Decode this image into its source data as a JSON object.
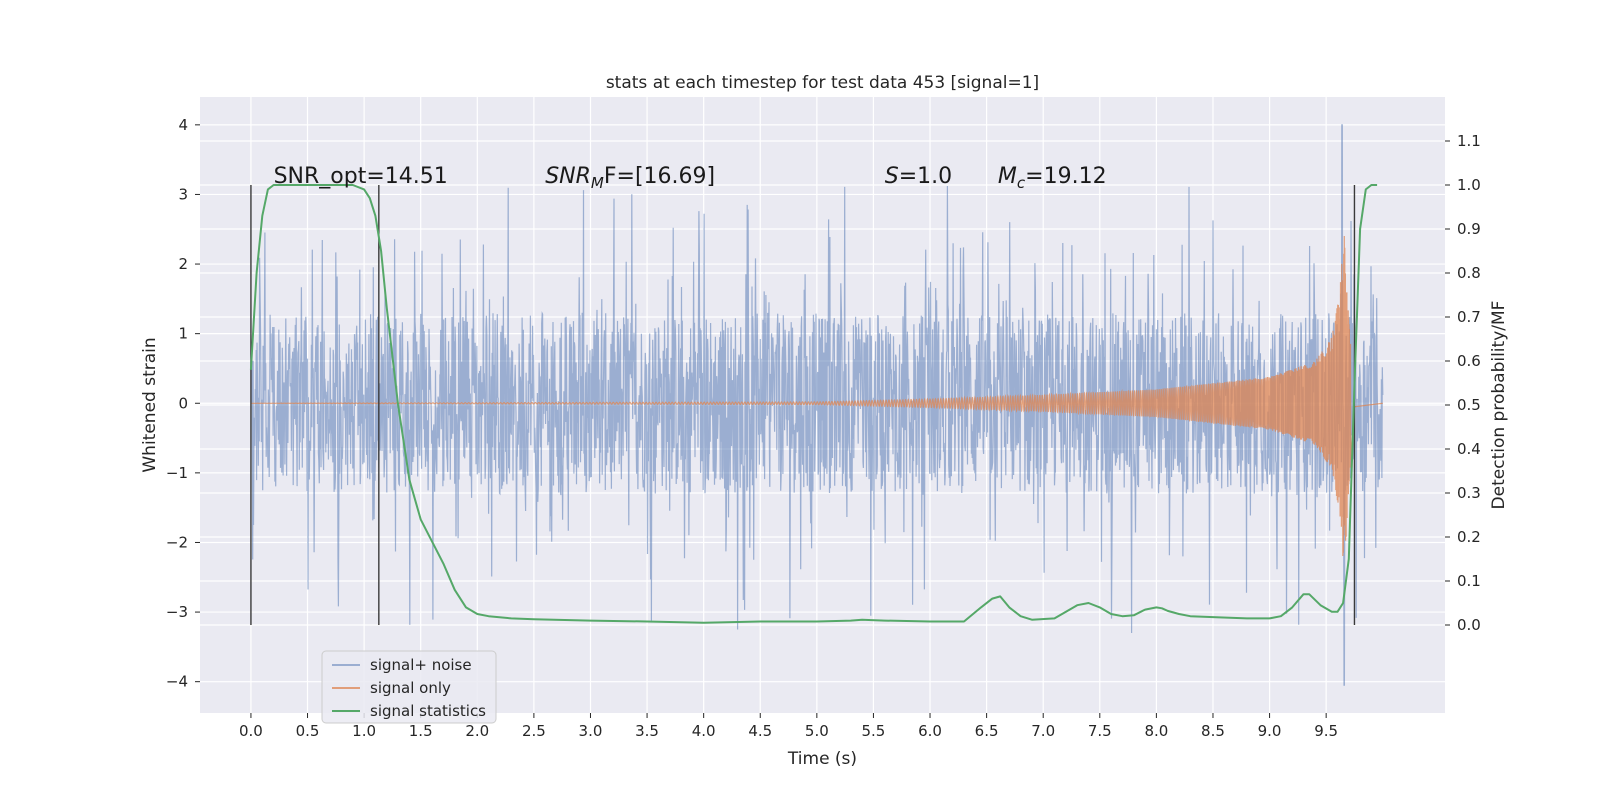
{
  "chart_data": {
    "type": "line",
    "title": "stats at each timestep for test data 453 [signal=1]",
    "xlabel": "Time (s)",
    "ylabel": "Whitened strain",
    "y2label": "Detection probability/MF",
    "xlim": [
      -0.45,
      10.55
    ],
    "ylim": [
      -4.45,
      4.4
    ],
    "y2lim": [
      -0.2,
      1.2
    ],
    "xticks": [
      0.0,
      0.5,
      1.0,
      1.5,
      2.0,
      2.5,
      3.0,
      3.5,
      4.0,
      4.5,
      5.0,
      5.5,
      6.0,
      6.5,
      7.0,
      7.5,
      8.0,
      8.5,
      9.0,
      9.5
    ],
    "xtick_labels": [
      "0.0",
      "0.5",
      "1.0",
      "1.5",
      "2.0",
      "2.5",
      "3.0",
      "3.5",
      "4.0",
      "4.5",
      "5.0",
      "5.5",
      "6.0",
      "6.5",
      "7.0",
      "7.5",
      "8.0",
      "8.5",
      "9.0",
      "9.5"
    ],
    "yticks": [
      -4,
      -3,
      -2,
      -1,
      0,
      1,
      2,
      3,
      4
    ],
    "ytick_labels": [
      "−4",
      "−3",
      "−2",
      "−1",
      "0",
      "1",
      "2",
      "3",
      "4"
    ],
    "y2ticks": [
      0.0,
      0.1,
      0.2,
      0.3,
      0.4,
      0.5,
      0.6,
      0.7,
      0.8,
      0.9,
      1.0,
      1.1
    ],
    "y2tick_labels": [
      "0.0",
      "0.1",
      "0.2",
      "0.3",
      "0.4",
      "0.5",
      "0.6",
      "0.7",
      "0.8",
      "0.9",
      "1.0",
      "1.1"
    ],
    "grid": true,
    "legend_position": "lower-left",
    "series": [
      {
        "name": "signal+ noise",
        "color": "#4c72b0",
        "axis": "left",
        "x_range": [
          0.0,
          10.0
        ],
        "body_amplitude": 1.3,
        "spike_amplitude_max": 3.2,
        "extreme_values": [
          {
            "x": 9.64,
            "y": 4.0
          },
          {
            "x": 9.66,
            "y": -4.05
          },
          {
            "x": 4.3,
            "y": -3.25
          },
          {
            "x": 7.78,
            "y": -3.3
          }
        ]
      },
      {
        "name": "signal only",
        "color": "#dd8452",
        "axis": "left",
        "x_range": [
          0.0,
          10.0
        ],
        "envelope": [
          [
            0.0,
            0.0
          ],
          [
            5.0,
            0.02
          ],
          [
            6.0,
            0.06
          ],
          [
            7.0,
            0.12
          ],
          [
            8.0,
            0.2
          ],
          [
            9.0,
            0.38
          ],
          [
            9.4,
            0.6
          ],
          [
            9.55,
            0.95
          ],
          [
            9.62,
            1.6
          ],
          [
            9.66,
            2.5
          ],
          [
            9.7,
            1.2
          ],
          [
            9.75,
            0.05
          ],
          [
            10.0,
            0.0
          ]
        ]
      },
      {
        "name": "signal statistics",
        "color": "#55a868",
        "axis": "right",
        "x": [
          0.0,
          0.05,
          0.1,
          0.15,
          0.2,
          0.3,
          0.5,
          0.7,
          0.9,
          1.0,
          1.05,
          1.1,
          1.15,
          1.2,
          1.3,
          1.4,
          1.5,
          1.6,
          1.7,
          1.8,
          1.9,
          2.0,
          2.1,
          2.3,
          2.5,
          3.0,
          3.5,
          4.0,
          4.5,
          5.0,
          5.3,
          5.4,
          5.6,
          6.0,
          6.3,
          6.45,
          6.55,
          6.62,
          6.7,
          6.8,
          6.9,
          7.1,
          7.3,
          7.4,
          7.5,
          7.6,
          7.7,
          7.8,
          7.9,
          8.0,
          8.05,
          8.1,
          8.2,
          8.3,
          8.5,
          8.8,
          9.0,
          9.1,
          9.2,
          9.3,
          9.35,
          9.45,
          9.55,
          9.6,
          9.65,
          9.7,
          9.75,
          9.8,
          9.85,
          9.9,
          9.95
        ],
        "values": [
          0.58,
          0.8,
          0.93,
          0.99,
          1.0,
          1.0,
          1.0,
          1.0,
          1.0,
          0.99,
          0.97,
          0.93,
          0.85,
          0.72,
          0.5,
          0.33,
          0.24,
          0.19,
          0.14,
          0.08,
          0.04,
          0.025,
          0.02,
          0.015,
          0.013,
          0.01,
          0.008,
          0.005,
          0.008,
          0.008,
          0.01,
          0.012,
          0.01,
          0.008,
          0.008,
          0.04,
          0.06,
          0.065,
          0.04,
          0.02,
          0.012,
          0.015,
          0.045,
          0.05,
          0.04,
          0.025,
          0.02,
          0.022,
          0.035,
          0.04,
          0.038,
          0.032,
          0.025,
          0.02,
          0.018,
          0.015,
          0.015,
          0.02,
          0.04,
          0.07,
          0.07,
          0.045,
          0.03,
          0.03,
          0.05,
          0.15,
          0.55,
          0.9,
          0.99,
          1.0,
          1.0
        ]
      }
    ],
    "vertical_markers": [
      {
        "x": 0.0,
        "y2_range": [
          0.0,
          1.0
        ]
      },
      {
        "x": 1.13,
        "y2_range": [
          0.0,
          1.0
        ]
      },
      {
        "x": 9.75,
        "y2_range": [
          0.0,
          1.0
        ]
      }
    ],
    "annotations": [
      {
        "id": "snr_opt",
        "text": "SNR_opt=14.51",
        "x": 0.2,
        "y2": 1.0
      },
      {
        "id": "snr_mf",
        "base": "SNR",
        "sub": "M",
        "suffix": "F=[16.69]",
        "x": 2.6,
        "y2": 1.0
      },
      {
        "id": "s",
        "base": "S",
        "suffix": "=1.0",
        "x": 5.6,
        "y2": 1.0
      },
      {
        "id": "mc",
        "base": "M",
        "sub": "c",
        "suffix": "=19.12",
        "x": 6.6,
        "y2": 1.0
      }
    ]
  }
}
